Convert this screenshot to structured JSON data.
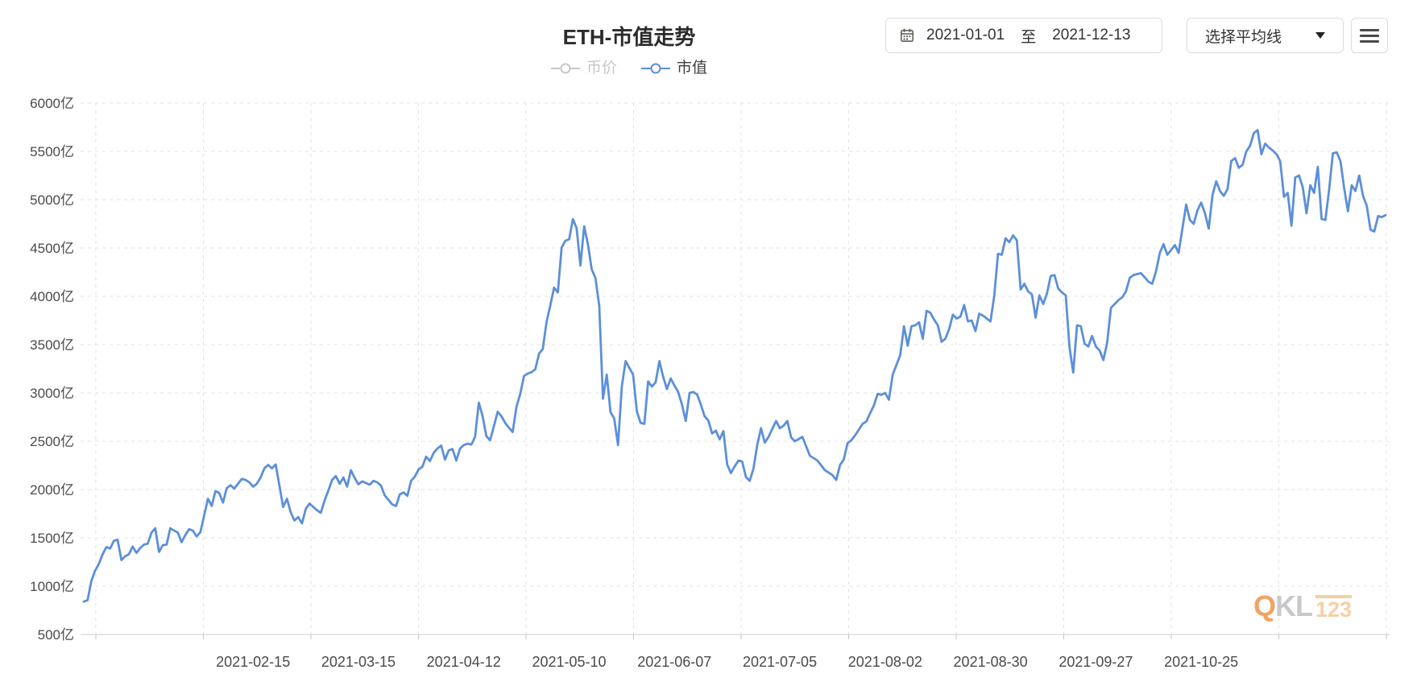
{
  "header": {
    "title": "ETH-市值走势",
    "legend": [
      {
        "label": "币价",
        "color": "#c7c7c7",
        "active": false
      },
      {
        "label": "市值",
        "color": "#5c8fd9",
        "active": true
      }
    ],
    "date_range": {
      "start": "2021-01-01",
      "separator": "至",
      "end": "2021-12-13"
    },
    "ma_select": {
      "label": "选择平均线"
    },
    "icons": {
      "calendar": "calendar-icon",
      "dropdown_arrow": "chevron-down-icon",
      "menu": "hamburger-menu-icon"
    }
  },
  "watermark": {
    "part1": "Q",
    "part2": "KL",
    "part3": "123"
  },
  "colors": {
    "line": "#5c8fd9",
    "legend_inactive": "#c7c7c7",
    "legend_active_text": "#3d3d3d",
    "grid": "#e3e3e6",
    "axis_line": "#cccccc",
    "tick": "#c6c6c6",
    "axis_text": "#4a4a4a",
    "title_text": "#2b2b2b",
    "control_border": "#dcdcdc",
    "control_text": "#333333",
    "watermark_orange": "#f0a462",
    "watermark_gray": "#c6c8cb",
    "watermark_light": "#f4d0a3"
  },
  "chart_data": {
    "type": "line",
    "title": "ETH-市值走势",
    "series_name": "市值",
    "unit": "亿",
    "year": 2021,
    "grid": {
      "dashed": true,
      "h_lines": 11,
      "v_lines": 13
    },
    "legend_position": "top-center",
    "y_axis": {
      "min": 500,
      "max": 6000,
      "step": 500,
      "labels": [
        "6000亿",
        "5500亿",
        "5000亿",
        "4500亿",
        "4000亿",
        "3500亿",
        "3000亿",
        "2500亿",
        "2000亿",
        "1500亿",
        "1000亿",
        "500亿"
      ]
    },
    "x_axis": {
      "start": "2021-01-01",
      "end": "2021-12-13",
      "tick_labels": [
        "2021-02-15",
        "2021-03-15",
        "2021-04-12",
        "2021-05-10",
        "2021-06-07",
        "2021-07-05",
        "2021-08-02",
        "2021-08-30",
        "2021-09-27",
        "2021-10-25"
      ]
    },
    "points_md": [
      [
        "01-01",
        840
      ],
      [
        "01-02",
        855
      ],
      [
        "01-03",
        1050
      ],
      [
        "01-04",
        1160
      ],
      [
        "01-05",
        1230
      ],
      [
        "01-06",
        1330
      ],
      [
        "01-07",
        1405
      ],
      [
        "01-08",
        1390
      ],
      [
        "01-09",
        1470
      ],
      [
        "01-10",
        1480
      ],
      [
        "01-11",
        1270
      ],
      [
        "01-12",
        1310
      ],
      [
        "01-13",
        1330
      ],
      [
        "01-14",
        1410
      ],
      [
        "01-15",
        1345
      ],
      [
        "01-16",
        1395
      ],
      [
        "01-17",
        1430
      ],
      [
        "01-18",
        1440
      ],
      [
        "01-19",
        1555
      ],
      [
        "01-20",
        1600
      ],
      [
        "01-21",
        1355
      ],
      [
        "01-22",
        1425
      ],
      [
        "01-23",
        1430
      ],
      [
        "01-24",
        1600
      ],
      [
        "01-25",
        1575
      ],
      [
        "01-26",
        1555
      ],
      [
        "01-27",
        1455
      ],
      [
        "01-28",
        1530
      ],
      [
        "01-29",
        1590
      ],
      [
        "01-30",
        1575
      ],
      [
        "01-31",
        1515
      ],
      [
        "02-01",
        1560
      ],
      [
        "02-02",
        1735
      ],
      [
        "02-03",
        1905
      ],
      [
        "02-04",
        1830
      ],
      [
        "02-05",
        1985
      ],
      [
        "02-06",
        1965
      ],
      [
        "02-07",
        1865
      ],
      [
        "02-08",
        2015
      ],
      [
        "02-09",
        2045
      ],
      [
        "02-10",
        2010
      ],
      [
        "02-11",
        2060
      ],
      [
        "02-12",
        2110
      ],
      [
        "02-13",
        2100
      ],
      [
        "02-14",
        2075
      ],
      [
        "02-15",
        2030
      ],
      [
        "02-16",
        2060
      ],
      [
        "02-17",
        2125
      ],
      [
        "02-18",
        2220
      ],
      [
        "02-19",
        2255
      ],
      [
        "02-20",
        2220
      ],
      [
        "02-21",
        2260
      ],
      [
        "02-22",
        2040
      ],
      [
        "02-23",
        1820
      ],
      [
        "02-24",
        1905
      ],
      [
        "02-25",
        1765
      ],
      [
        "02-26",
        1680
      ],
      [
        "02-27",
        1715
      ],
      [
        "02-28",
        1650
      ],
      [
        "03-01",
        1800
      ],
      [
        "03-02",
        1855
      ],
      [
        "03-03",
        1820
      ],
      [
        "03-04",
        1785
      ],
      [
        "03-05",
        1760
      ],
      [
        "03-06",
        1885
      ],
      [
        "03-07",
        1990
      ],
      [
        "03-08",
        2100
      ],
      [
        "03-09",
        2140
      ],
      [
        "03-10",
        2060
      ],
      [
        "03-11",
        2125
      ],
      [
        "03-12",
        2030
      ],
      [
        "03-13",
        2200
      ],
      [
        "03-14",
        2120
      ],
      [
        "03-15",
        2055
      ],
      [
        "03-16",
        2085
      ],
      [
        "03-18",
        2050
      ],
      [
        "03-19",
        2090
      ],
      [
        "03-20",
        2075
      ],
      [
        "03-21",
        2040
      ],
      [
        "03-22",
        1940
      ],
      [
        "03-24",
        1845
      ],
      [
        "03-25",
        1830
      ],
      [
        "03-26",
        1950
      ],
      [
        "03-27",
        1970
      ],
      [
        "03-28",
        1935
      ],
      [
        "03-29",
        2090
      ],
      [
        "03-30",
        2135
      ],
      [
        "03-31",
        2210
      ],
      [
        "04-01",
        2235
      ],
      [
        "04-02",
        2340
      ],
      [
        "04-03",
        2295
      ],
      [
        "04-04",
        2380
      ],
      [
        "04-05",
        2425
      ],
      [
        "04-06",
        2455
      ],
      [
        "04-07",
        2310
      ],
      [
        "04-08",
        2405
      ],
      [
        "04-09",
        2420
      ],
      [
        "04-10",
        2300
      ],
      [
        "04-11",
        2425
      ],
      [
        "04-12",
        2460
      ],
      [
        "04-13",
        2475
      ],
      [
        "04-14",
        2465
      ],
      [
        "04-15",
        2545
      ],
      [
        "04-16",
        2900
      ],
      [
        "04-17",
        2760
      ],
      [
        "04-18",
        2555
      ],
      [
        "04-19",
        2510
      ],
      [
        "04-20",
        2655
      ],
      [
        "04-21",
        2805
      ],
      [
        "04-22",
        2760
      ],
      [
        "04-23",
        2690
      ],
      [
        "04-24",
        2640
      ],
      [
        "04-25",
        2595
      ],
      [
        "04-26",
        2855
      ],
      [
        "04-27",
        2990
      ],
      [
        "04-28",
        3175
      ],
      [
        "04-29",
        3200
      ],
      [
        "04-30",
        3215
      ],
      [
        "05-01",
        3245
      ],
      [
        "05-02",
        3405
      ],
      [
        "05-03",
        3455
      ],
      [
        "05-04",
        3735
      ],
      [
        "05-05",
        3905
      ],
      [
        "05-06",
        4090
      ],
      [
        "05-07",
        4040
      ],
      [
        "05-08",
        4505
      ],
      [
        "05-09",
        4575
      ],
      [
        "05-10",
        4590
      ],
      [
        "05-11",
        4800
      ],
      [
        "05-12",
        4705
      ],
      [
        "05-13",
        4320
      ],
      [
        "05-14",
        4725
      ],
      [
        "05-15",
        4540
      ],
      [
        "05-16",
        4280
      ],
      [
        "05-17",
        4190
      ],
      [
        "05-18",
        3900
      ],
      [
        "05-19",
        2940
      ],
      [
        "05-20",
        3190
      ],
      [
        "05-21",
        2800
      ],
      [
        "05-22",
        2735
      ],
      [
        "05-23",
        2460
      ],
      [
        "05-24",
        3065
      ],
      [
        "05-25",
        3330
      ],
      [
        "05-26",
        3260
      ],
      [
        "05-27",
        3190
      ],
      [
        "05-28",
        2810
      ],
      [
        "05-29",
        2690
      ],
      [
        "05-30",
        2680
      ],
      [
        "05-31",
        3120
      ],
      [
        "06-01",
        3065
      ],
      [
        "06-02",
        3110
      ],
      [
        "06-03",
        3330
      ],
      [
        "06-04",
        3165
      ],
      [
        "06-05",
        3040
      ],
      [
        "06-06",
        3150
      ],
      [
        "06-07",
        3075
      ],
      [
        "06-08",
        3010
      ],
      [
        "06-09",
        2880
      ],
      [
        "06-10",
        2710
      ],
      [
        "06-11",
        3000
      ],
      [
        "06-12",
        3010
      ],
      [
        "06-13",
        2985
      ],
      [
        "06-14",
        2880
      ],
      [
        "06-15",
        2760
      ],
      [
        "06-16",
        2715
      ],
      [
        "06-17",
        2580
      ],
      [
        "06-18",
        2610
      ],
      [
        "06-19",
        2520
      ],
      [
        "06-20",
        2605
      ],
      [
        "06-21",
        2260
      ],
      [
        "06-22",
        2170
      ],
      [
        "06-23",
        2240
      ],
      [
        "06-24",
        2300
      ],
      [
        "06-25",
        2290
      ],
      [
        "06-26",
        2130
      ],
      [
        "06-27",
        2090
      ],
      [
        "06-28",
        2220
      ],
      [
        "06-29",
        2460
      ],
      [
        "06-30",
        2635
      ],
      [
        "07-01",
        2485
      ],
      [
        "07-02",
        2545
      ],
      [
        "07-04",
        2710
      ],
      [
        "07-05",
        2635
      ],
      [
        "07-06",
        2660
      ],
      [
        "07-07",
        2710
      ],
      [
        "07-08",
        2540
      ],
      [
        "07-09",
        2500
      ],
      [
        "07-11",
        2545
      ],
      [
        "07-13",
        2350
      ],
      [
        "07-15",
        2300
      ],
      [
        "07-17",
        2200
      ],
      [
        "07-19",
        2150
      ],
      [
        "07-20",
        2100
      ],
      [
        "07-21",
        2255
      ],
      [
        "07-22",
        2310
      ],
      [
        "07-23",
        2480
      ],
      [
        "07-24",
        2510
      ],
      [
        "07-25",
        2560
      ],
      [
        "07-26",
        2620
      ],
      [
        "07-27",
        2680
      ],
      [
        "07-28",
        2705
      ],
      [
        "07-29",
        2790
      ],
      [
        "07-30",
        2870
      ],
      [
        "07-31",
        2990
      ],
      [
        "08-01",
        2980
      ],
      [
        "08-02",
        3000
      ],
      [
        "08-03",
        2930
      ],
      [
        "08-04",
        3190
      ],
      [
        "08-05",
        3290
      ],
      [
        "08-06",
        3390
      ],
      [
        "08-07",
        3690
      ],
      [
        "08-08",
        3490
      ],
      [
        "08-09",
        3690
      ],
      [
        "08-10",
        3700
      ],
      [
        "08-11",
        3730
      ],
      [
        "08-12",
        3560
      ],
      [
        "08-13",
        3850
      ],
      [
        "08-14",
        3830
      ],
      [
        "08-15",
        3760
      ],
      [
        "08-16",
        3700
      ],
      [
        "08-17",
        3530
      ],
      [
        "08-18",
        3560
      ],
      [
        "08-19",
        3660
      ],
      [
        "08-20",
        3810
      ],
      [
        "08-21",
        3770
      ],
      [
        "08-22",
        3790
      ],
      [
        "08-23",
        3910
      ],
      [
        "08-24",
        3740
      ],
      [
        "08-25",
        3750
      ],
      [
        "08-26",
        3640
      ],
      [
        "08-27",
        3820
      ],
      [
        "08-28",
        3800
      ],
      [
        "08-29",
        3770
      ],
      [
        "08-30",
        3740
      ],
      [
        "08-31",
        4010
      ],
      [
        "09-01",
        4440
      ],
      [
        "09-02",
        4430
      ],
      [
        "09-03",
        4600
      ],
      [
        "09-04",
        4560
      ],
      [
        "09-05",
        4630
      ],
      [
        "09-06",
        4580
      ],
      [
        "09-07",
        4070
      ],
      [
        "09-08",
        4130
      ],
      [
        "09-09",
        4050
      ],
      [
        "09-10",
        4020
      ],
      [
        "09-11",
        3780
      ],
      [
        "09-12",
        4010
      ],
      [
        "09-13",
        3920
      ],
      [
        "09-14",
        4030
      ],
      [
        "09-15",
        4210
      ],
      [
        "09-16",
        4220
      ],
      [
        "09-17",
        4080
      ],
      [
        "09-18",
        4040
      ],
      [
        "09-19",
        4010
      ],
      [
        "09-20",
        3470
      ],
      [
        "09-21",
        3210
      ],
      [
        "09-22",
        3700
      ],
      [
        "09-23",
        3690
      ],
      [
        "09-24",
        3510
      ],
      [
        "09-25",
        3480
      ],
      [
        "09-26",
        3590
      ],
      [
        "09-27",
        3480
      ],
      [
        "09-28",
        3440
      ],
      [
        "09-29",
        3340
      ],
      [
        "09-30",
        3520
      ],
      [
        "10-01",
        3880
      ],
      [
        "10-02",
        3920
      ],
      [
        "10-03",
        3960
      ],
      [
        "10-04",
        3990
      ],
      [
        "10-05",
        4050
      ],
      [
        "10-06",
        4190
      ],
      [
        "10-07",
        4220
      ],
      [
        "10-08",
        4230
      ],
      [
        "10-09",
        4240
      ],
      [
        "10-11",
        4150
      ],
      [
        "10-12",
        4130
      ],
      [
        "10-13",
        4260
      ],
      [
        "10-14",
        4450
      ],
      [
        "10-15",
        4540
      ],
      [
        "10-16",
        4430
      ],
      [
        "10-17",
        4480
      ],
      [
        "10-18",
        4530
      ],
      [
        "10-19",
        4450
      ],
      [
        "10-20",
        4700
      ],
      [
        "10-21",
        4950
      ],
      [
        "10-22",
        4790
      ],
      [
        "10-23",
        4750
      ],
      [
        "10-24",
        4890
      ],
      [
        "10-25",
        4970
      ],
      [
        "10-26",
        4860
      ],
      [
        "10-27",
        4700
      ],
      [
        "10-28",
        5050
      ],
      [
        "10-29",
        5190
      ],
      [
        "10-30",
        5090
      ],
      [
        "10-31",
        5040
      ],
      [
        "11-01",
        5110
      ],
      [
        "11-02",
        5400
      ],
      [
        "11-03",
        5430
      ],
      [
        "11-04",
        5330
      ],
      [
        "11-05",
        5360
      ],
      [
        "11-06",
        5500
      ],
      [
        "11-07",
        5560
      ],
      [
        "11-08",
        5690
      ],
      [
        "11-09",
        5720
      ],
      [
        "11-10",
        5470
      ],
      [
        "11-11",
        5580
      ],
      [
        "11-12",
        5540
      ],
      [
        "11-13",
        5510
      ],
      [
        "11-14",
        5470
      ],
      [
        "11-15",
        5400
      ],
      [
        "11-16",
        5030
      ],
      [
        "11-17",
        5070
      ],
      [
        "11-18",
        4730
      ],
      [
        "11-19",
        5230
      ],
      [
        "11-20",
        5250
      ],
      [
        "11-21",
        5130
      ],
      [
        "11-22",
        4860
      ],
      [
        "11-23",
        5150
      ],
      [
        "11-24",
        5070
      ],
      [
        "11-25",
        5340
      ],
      [
        "11-26",
        4800
      ],
      [
        "11-27",
        4790
      ],
      [
        "11-28",
        5100
      ],
      [
        "11-29",
        5480
      ],
      [
        "11-30",
        5490
      ],
      [
        "12-01",
        5400
      ],
      [
        "12-02",
        5120
      ],
      [
        "12-03",
        4880
      ],
      [
        "12-04",
        5150
      ],
      [
        "12-05",
        5090
      ],
      [
        "12-06",
        5250
      ],
      [
        "12-07",
        5040
      ],
      [
        "12-08",
        4940
      ],
      [
        "12-09",
        4690
      ],
      [
        "12-10",
        4670
      ],
      [
        "12-11",
        4830
      ],
      [
        "12-12",
        4820
      ],
      [
        "12-13",
        4840
      ]
    ]
  }
}
